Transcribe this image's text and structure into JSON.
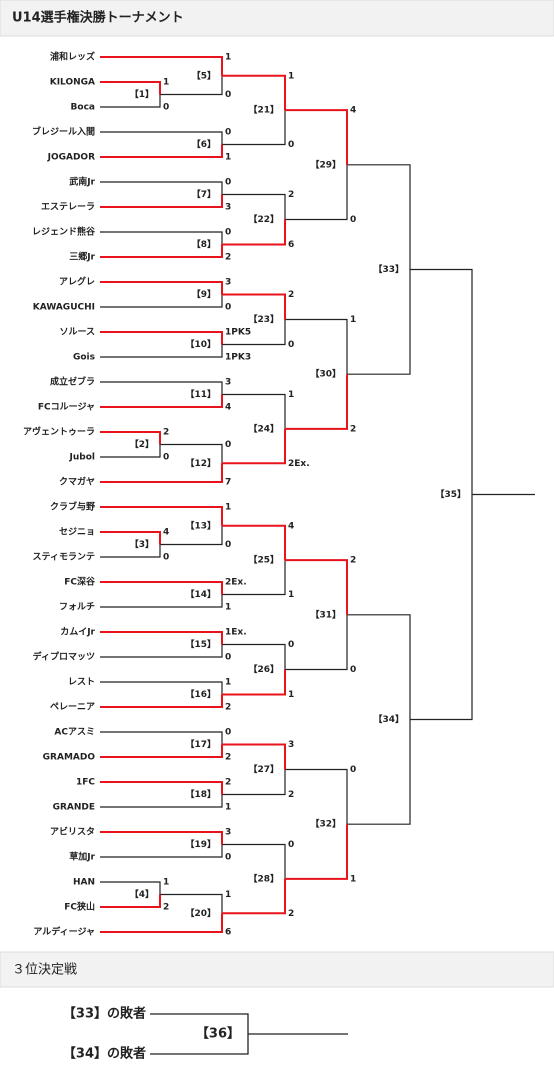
{
  "header": {
    "title": "U14選手権決勝トーナメント"
  },
  "teams": [
    "浦和レッズ",
    "KILONGA",
    "Boca",
    "ブレジール入間",
    "JOGADOR",
    "武南Jr",
    "エステレーラ",
    "レジェンド熊谷",
    "三郷Jr",
    "アレグレ",
    "KAWAGUCHI",
    "ソルース",
    "Gois",
    "成立ゼブラ",
    "FCコルージャ",
    "アヴェントゥーラ",
    "Jubol",
    "クマガヤ",
    "クラブ与野",
    "セジニョ",
    "スティモランテ",
    "FC深谷",
    "フォルチ",
    "カムイJr",
    "ディプロマッツ",
    "レスト",
    "ペレーニア",
    "ACアスミ",
    "GRAMADO",
    "1FC",
    "GRANDE",
    "アビリスタ",
    "草加Jr",
    "HAN",
    "FC狭山",
    "アルディージャ"
  ],
  "matches": [
    {
      "label": "【1】",
      "scores": [
        "1",
        "0"
      ]
    },
    {
      "label": "【2】",
      "scores": [
        "2",
        "0"
      ]
    },
    {
      "label": "【3】",
      "scores": [
        "4",
        "0"
      ]
    },
    {
      "label": "【4】",
      "scores": [
        "1",
        "2"
      ]
    },
    {
      "label": "【5】",
      "scores": [
        "1",
        "0"
      ]
    },
    {
      "label": "【6】",
      "scores": [
        "0",
        "1"
      ]
    },
    {
      "label": "【7】",
      "scores": [
        "0",
        "3"
      ]
    },
    {
      "label": "【8】",
      "scores": [
        "0",
        "2"
      ]
    },
    {
      "label": "【9】",
      "scores": [
        "3",
        "0"
      ]
    },
    {
      "label": "【10】",
      "scores": [
        "1PK5",
        "1PK3"
      ]
    },
    {
      "label": "【11】",
      "scores": [
        "3",
        "4"
      ]
    },
    {
      "label": "【12】",
      "scores": [
        "0",
        "7"
      ]
    },
    {
      "label": "【13】",
      "scores": [
        "1",
        "0"
      ]
    },
    {
      "label": "【14】",
      "scores": [
        "2Ex.",
        "1"
      ]
    },
    {
      "label": "【15】",
      "scores": [
        "1Ex.",
        "0"
      ]
    },
    {
      "label": "【16】",
      "scores": [
        "1",
        "2"
      ]
    },
    {
      "label": "【17】",
      "scores": [
        "0",
        "2"
      ]
    },
    {
      "label": "【18】",
      "scores": [
        "2",
        "1"
      ]
    },
    {
      "label": "【19】",
      "scores": [
        "3",
        "0"
      ]
    },
    {
      "label": "【20】",
      "scores": [
        "1",
        "6"
      ]
    },
    {
      "label": "【21】",
      "scores": [
        "1",
        "0"
      ]
    },
    {
      "label": "【22】",
      "scores": [
        "2",
        "6"
      ]
    },
    {
      "label": "【23】",
      "scores": [
        "2",
        "0"
      ]
    },
    {
      "label": "【24】",
      "scores": [
        "1",
        "2Ex."
      ]
    },
    {
      "label": "【25】",
      "scores": [
        "4",
        "1"
      ]
    },
    {
      "label": "【26】",
      "scores": [
        "0",
        "1"
      ]
    },
    {
      "label": "【27】",
      "scores": [
        "3",
        "2"
      ]
    },
    {
      "label": "【28】",
      "scores": [
        "0",
        "2"
      ]
    },
    {
      "label": "【29】",
      "scores": [
        "4",
        "0"
      ]
    },
    {
      "label": "【30】",
      "scores": [
        "1",
        "2"
      ]
    },
    {
      "label": "【31】",
      "scores": [
        "2",
        "0"
      ]
    },
    {
      "label": "【32】",
      "scores": [
        "0",
        "1"
      ]
    },
    {
      "label": "【33】"
    },
    {
      "label": "【34】"
    },
    {
      "label": "【35】"
    }
  ],
  "third_place": {
    "title": "３位決定戦",
    "entries": [
      "【33】の敗者",
      "【34】の敗者"
    ],
    "label": "【36】"
  }
}
